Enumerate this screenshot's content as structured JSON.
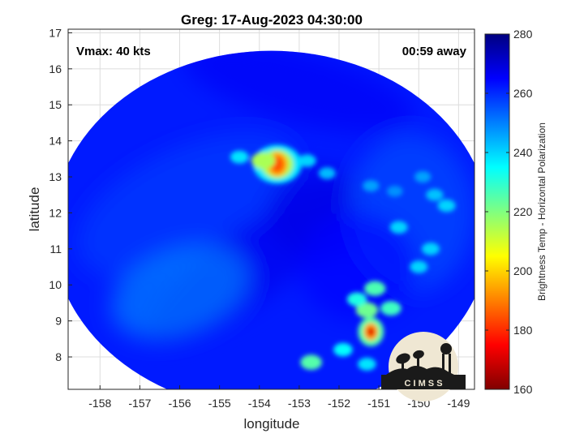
{
  "chart_data": {
    "type": "heatmap",
    "title": "Greg: 17-Aug-2023 04:30:00",
    "xlabel": "longitude",
    "ylabel": "latitude",
    "xlim": [
      -158.8,
      -148.6
    ],
    "ylim": [
      7.1,
      17.1
    ],
    "xticks": [
      -158,
      -157,
      -156,
      -155,
      -154,
      -153,
      -152,
      -151,
      -150,
      -149
    ],
    "yticks": [
      8,
      9,
      10,
      11,
      12,
      13,
      14,
      15,
      16,
      17
    ],
    "grid": true,
    "annotations": {
      "left": "Vmax: 40 kts",
      "right": "00:59 away"
    },
    "colorbar": {
      "label": "Brightness Temp - Horizontal Polarization",
      "range": [
        160,
        280
      ],
      "ticks": [
        160,
        180,
        200,
        220,
        240,
        260,
        280
      ],
      "colormap": "jet"
    },
    "swath": {
      "center": [
        -153.7,
        11.5
      ],
      "semi_axes_deg": [
        5.5,
        5.0
      ]
    },
    "background_tb": 262,
    "features": [
      {
        "name": "core",
        "lon": -153.55,
        "lat": 13.35,
        "tb": 185
      },
      {
        "name": "core-shoulder",
        "lon": -153.9,
        "lat": 13.45,
        "tb": 215
      },
      {
        "name": "band-1",
        "lon": -154.5,
        "lat": 13.55,
        "tb": 238
      },
      {
        "name": "band-2",
        "lon": -152.8,
        "lat": 13.45,
        "tb": 240
      },
      {
        "name": "band-3",
        "lon": -152.3,
        "lat": 13.1,
        "tb": 243
      },
      {
        "name": "cell-1",
        "lon": -151.2,
        "lat": 8.7,
        "tb": 172
      },
      {
        "name": "cell-2",
        "lon": -151.3,
        "lat": 9.3,
        "tb": 222
      },
      {
        "name": "cell-3",
        "lon": -151.1,
        "lat": 9.9,
        "tb": 226
      },
      {
        "name": "cell-4",
        "lon": -151.55,
        "lat": 9.6,
        "tb": 232
      },
      {
        "name": "cell-5",
        "lon": -150.7,
        "lat": 9.35,
        "tb": 228
      },
      {
        "name": "cell-6",
        "lon": -151.9,
        "lat": 8.2,
        "tb": 235
      },
      {
        "name": "cell-7",
        "lon": -152.7,
        "lat": 7.85,
        "tb": 225
      },
      {
        "name": "cell-8",
        "lon": -151.3,
        "lat": 7.8,
        "tb": 238
      },
      {
        "name": "cell-9",
        "lon": -150.0,
        "lat": 10.5,
        "tb": 240
      },
      {
        "name": "cell-10",
        "lon": -149.7,
        "lat": 11.0,
        "tb": 240
      },
      {
        "name": "cell-11",
        "lon": -150.5,
        "lat": 11.6,
        "tb": 240
      },
      {
        "name": "cell-12",
        "lon": -149.6,
        "lat": 12.5,
        "tb": 242
      },
      {
        "name": "cell-13",
        "lon": -149.3,
        "lat": 12.2,
        "tb": 240
      },
      {
        "name": "cell-14",
        "lon": -151.2,
        "lat": 12.75,
        "tb": 246
      },
      {
        "name": "cell-15",
        "lon": -150.6,
        "lat": 12.6,
        "tb": 248
      },
      {
        "name": "cell-16",
        "lon": -149.9,
        "lat": 13.0,
        "tb": 246
      }
    ]
  },
  "logo": {
    "text": "C I M S S"
  },
  "colors": {
    "logo_bg": "#efe7d3",
    "logo_fg": "#1a1a1a",
    "axis": "#262626",
    "grid": "#dcdcdc"
  }
}
